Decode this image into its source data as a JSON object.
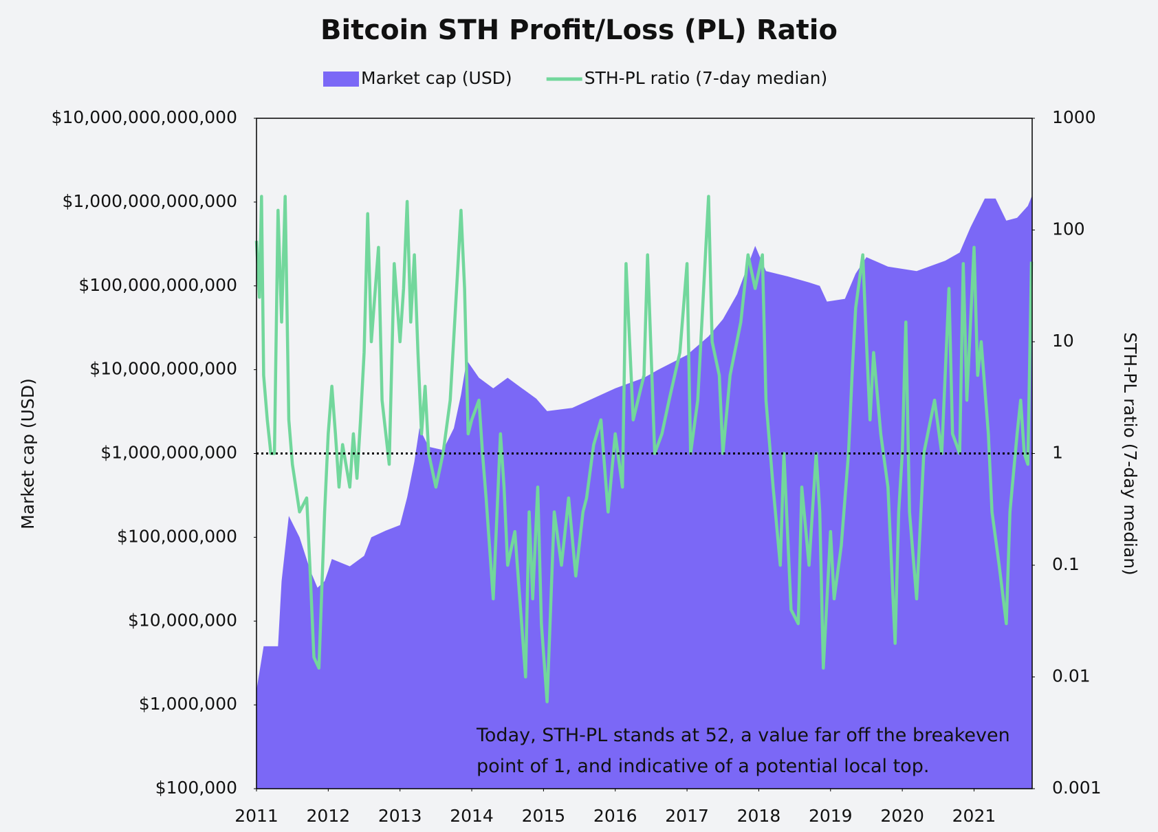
{
  "chart_data": {
    "type": "area_line",
    "title": "Bitcoin STH Profit/Loss (PL) Ratio",
    "y_label": "Market cap (USD)",
    "y2_label": "STH-PL ratio (7-day median)",
    "xlim": [
      2011,
      2021.81
    ],
    "xticks": [
      2011,
      2012,
      2013,
      2014,
      2015,
      2016,
      2017,
      2018,
      2019,
      2020,
      2021
    ],
    "ylim": [
      100000,
      10000000000000
    ],
    "ylog": true,
    "yticks": [
      {
        "value": 100000,
        "label": "$100,000"
      },
      {
        "value": 1000000,
        "label": "$1,000,000"
      },
      {
        "value": 10000000,
        "label": "$10,000,000"
      },
      {
        "value": 100000000,
        "label": "$100,000,000"
      },
      {
        "value": 1000000000,
        "label": "$1,000,000,000"
      },
      {
        "value": 10000000000,
        "label": "$10,000,000,000"
      },
      {
        "value": 100000000000,
        "label": "$100,000,000,000"
      },
      {
        "value": 1000000000000,
        "label": "$1,000,000,000,000"
      },
      {
        "value": 10000000000000,
        "label": "$10,000,000,000,000"
      }
    ],
    "y2lim": [
      0.001,
      1000
    ],
    "y2log": true,
    "y2ticks": [
      0.001,
      0.01,
      0.1,
      1,
      10,
      100,
      1000
    ],
    "reference_line": {
      "value": 1,
      "axis": "y2"
    },
    "annotation": "Today, STH-PL stands at 52, a value far off the breakeven point of 1, and indicative of a potential local top.",
    "series": [
      {
        "name": "Market cap (USD)",
        "type": "area",
        "color": "#7b68f6",
        "x": [
          2011.0,
          2011.1,
          2011.3,
          2011.35,
          2011.45,
          2011.6,
          2011.75,
          2011.85,
          2011.95,
          2012.0,
          2012.05,
          2012.3,
          2012.5,
          2012.6,
          2012.8,
          2013.0,
          2013.1,
          2013.2,
          2013.27,
          2013.4,
          2013.6,
          2013.75,
          2013.85,
          2013.93,
          2014.1,
          2014.3,
          2014.5,
          2014.7,
          2014.9,
          2015.05,
          2015.4,
          2015.8,
          2016.0,
          2016.4,
          2016.6,
          2017.0,
          2017.3,
          2017.5,
          2017.7,
          2017.95,
          2018.1,
          2018.4,
          2018.7,
          2018.85,
          2018.95,
          2019.2,
          2019.35,
          2019.5,
          2019.8,
          2020.2,
          2020.6,
          2020.8,
          2020.95,
          2021.15,
          2021.3,
          2021.45,
          2021.6,
          2021.75,
          2021.81
        ],
        "values": [
          1500000,
          5000000,
          5000000,
          30000000,
          180000000,
          100000000,
          40000000,
          25000000,
          30000000,
          40000000,
          55000000,
          45000000,
          60000000,
          100000000,
          120000000,
          140000000,
          300000000,
          800000000,
          2000000000,
          1200000000,
          1100000000,
          2000000000,
          5000000000,
          13000000000,
          8000000000,
          6000000000,
          8000000000,
          6000000000,
          4500000000,
          3200000000,
          3500000000,
          5000000000,
          6000000000,
          8000000000,
          10000000000,
          15000000000,
          25000000000,
          40000000000,
          80000000000,
          300000000000,
          150000000000,
          130000000000,
          110000000000,
          100000000000,
          65000000000,
          70000000000,
          140000000000,
          220000000000,
          170000000000,
          150000000000,
          200000000000,
          250000000000,
          500000000000,
          1100000000000,
          1100000000000,
          600000000000,
          650000000000,
          900000000000,
          1200000000000
        ]
      },
      {
        "name": "STH-PL ratio (7-day median)",
        "type": "line",
        "axis": "y2",
        "color": "#72d79c",
        "x": [
          2011.0,
          2011.04,
          2011.07,
          2011.1,
          2011.15,
          2011.2,
          2011.25,
          2011.3,
          2011.35,
          2011.4,
          2011.45,
          2011.5,
          2011.6,
          2011.7,
          2011.75,
          2011.8,
          2011.87,
          2011.95,
          2012.0,
          2012.05,
          2012.1,
          2012.15,
          2012.2,
          2012.3,
          2012.35,
          2012.4,
          2012.45,
          2012.5,
          2012.55,
          2012.6,
          2012.7,
          2012.75,
          2012.85,
          2012.92,
          2013.0,
          2013.05,
          2013.1,
          2013.15,
          2013.2,
          2013.25,
          2013.3,
          2013.35,
          2013.4,
          2013.5,
          2013.6,
          2013.7,
          2013.8,
          2013.85,
          2013.9,
          2013.95,
          2014.0,
          2014.1,
          2014.15,
          2014.2,
          2014.3,
          2014.4,
          2014.45,
          2014.5,
          2014.6,
          2014.75,
          2014.8,
          2014.85,
          2014.92,
          2014.97,
          2015.05,
          2015.15,
          2015.25,
          2015.35,
          2015.45,
          2015.55,
          2015.6,
          2015.7,
          2015.8,
          2015.9,
          2016.0,
          2016.1,
          2016.15,
          2016.25,
          2016.4,
          2016.45,
          2016.55,
          2016.65,
          2016.75,
          2016.9,
          2017.0,
          2017.05,
          2017.15,
          2017.3,
          2017.35,
          2017.45,
          2017.5,
          2017.6,
          2017.75,
          2017.85,
          2017.95,
          2018.05,
          2018.1,
          2018.2,
          2018.3,
          2018.35,
          2018.4,
          2018.45,
          2018.55,
          2018.6,
          2018.7,
          2018.8,
          2018.85,
          2018.9,
          2019.0,
          2019.05,
          2019.15,
          2019.25,
          2019.3,
          2019.35,
          2019.45,
          2019.5,
          2019.55,
          2019.6,
          2019.7,
          2019.8,
          2019.9,
          2019.95,
          2020.0,
          2020.05,
          2020.1,
          2020.2,
          2020.3,
          2020.45,
          2020.55,
          2020.65,
          2020.7,
          2020.8,
          2020.85,
          2020.9,
          2021.0,
          2021.05,
          2021.1,
          2021.2,
          2021.25,
          2021.35,
          2021.45,
          2021.5,
          2021.6,
          2021.65,
          2021.7,
          2021.75,
          2021.8
        ],
        "values": [
          80,
          25,
          200,
          5,
          2,
          1,
          1,
          150,
          15,
          200,
          2,
          0.8,
          0.3,
          0.4,
          0.08,
          0.015,
          0.012,
          0.3,
          1.5,
          4,
          1.5,
          0.5,
          1.2,
          0.5,
          1.5,
          0.6,
          2,
          8,
          140,
          10,
          70,
          3,
          0.8,
          50,
          10,
          30,
          180,
          15,
          60,
          8,
          1.5,
          4,
          1,
          0.5,
          1,
          3,
          40,
          150,
          30,
          1.5,
          2,
          3,
          1,
          0.4,
          0.05,
          1.5,
          0.5,
          0.1,
          0.2,
          0.01,
          0.3,
          0.05,
          0.5,
          0.03,
          0.006,
          0.3,
          0.1,
          0.4,
          0.08,
          0.3,
          0.4,
          1.2,
          2,
          0.3,
          1.5,
          0.5,
          50,
          2,
          5,
          60,
          1,
          1.5,
          3,
          8,
          50,
          1,
          3,
          200,
          10,
          5,
          1,
          5,
          15,
          60,
          30,
          60,
          3,
          0.5,
          0.1,
          1,
          0.2,
          0.04,
          0.03,
          0.5,
          0.1,
          1,
          0.3,
          0.012,
          0.2,
          0.05,
          0.15,
          1,
          5,
          20,
          60,
          10,
          2,
          8,
          1.5,
          0.5,
          0.02,
          0.3,
          1,
          15,
          0.3,
          0.05,
          1,
          3,
          1,
          30,
          1.5,
          1,
          50,
          3,
          70,
          5,
          10,
          1.5,
          0.3,
          0.1,
          0.03,
          0.3,
          1.5,
          3,
          1,
          0.8,
          52
        ]
      }
    ]
  }
}
